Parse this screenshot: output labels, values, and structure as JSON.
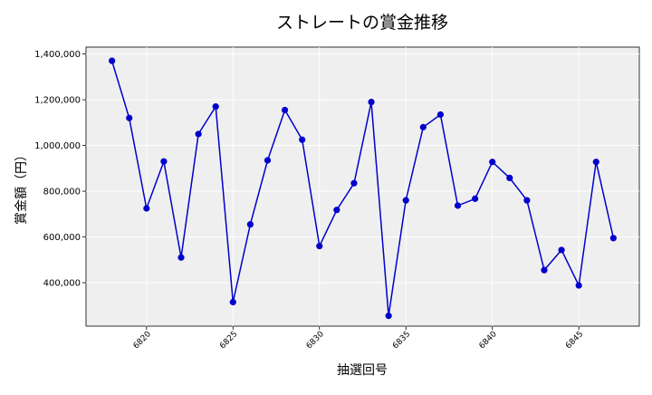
{
  "chart_data": {
    "type": "line",
    "title": "ストレートの賞金推移",
    "xlabel": "抽選回号",
    "ylabel": "賞金額（円）",
    "xlim": [
      6816.5,
      6848.5
    ],
    "ylim": [
      210000,
      1430000
    ],
    "xticks": [
      6820,
      6825,
      6830,
      6835,
      6840,
      6845
    ],
    "yticks": [
      400000,
      600000,
      800000,
      1000000,
      1200000,
      1400000
    ],
    "ytick_labels": [
      "400,000",
      "600,000",
      "800,000",
      "1,000,000",
      "1,200,000",
      "1,400,000"
    ],
    "grid": true,
    "series": [
      {
        "color": "#0000cc",
        "x": [
          6818,
          6819,
          6820,
          6821,
          6822,
          6823,
          6824,
          6825,
          6826,
          6827,
          6828,
          6829,
          6830,
          6831,
          6832,
          6833,
          6834,
          6835,
          6836,
          6837,
          6838,
          6839,
          6840,
          6841,
          6842,
          6843,
          6844,
          6845,
          6846,
          6847
        ],
        "y": [
          1370000,
          1120000,
          725000,
          930000,
          510000,
          1050000,
          1170000,
          315000,
          655000,
          935000,
          1155000,
          1025000,
          560000,
          718000,
          835000,
          1190000,
          255000,
          760000,
          1080000,
          1135000,
          737000,
          767000,
          928000,
          858000,
          760000,
          455000,
          543000,
          388000,
          928000,
          595000
        ]
      }
    ]
  }
}
